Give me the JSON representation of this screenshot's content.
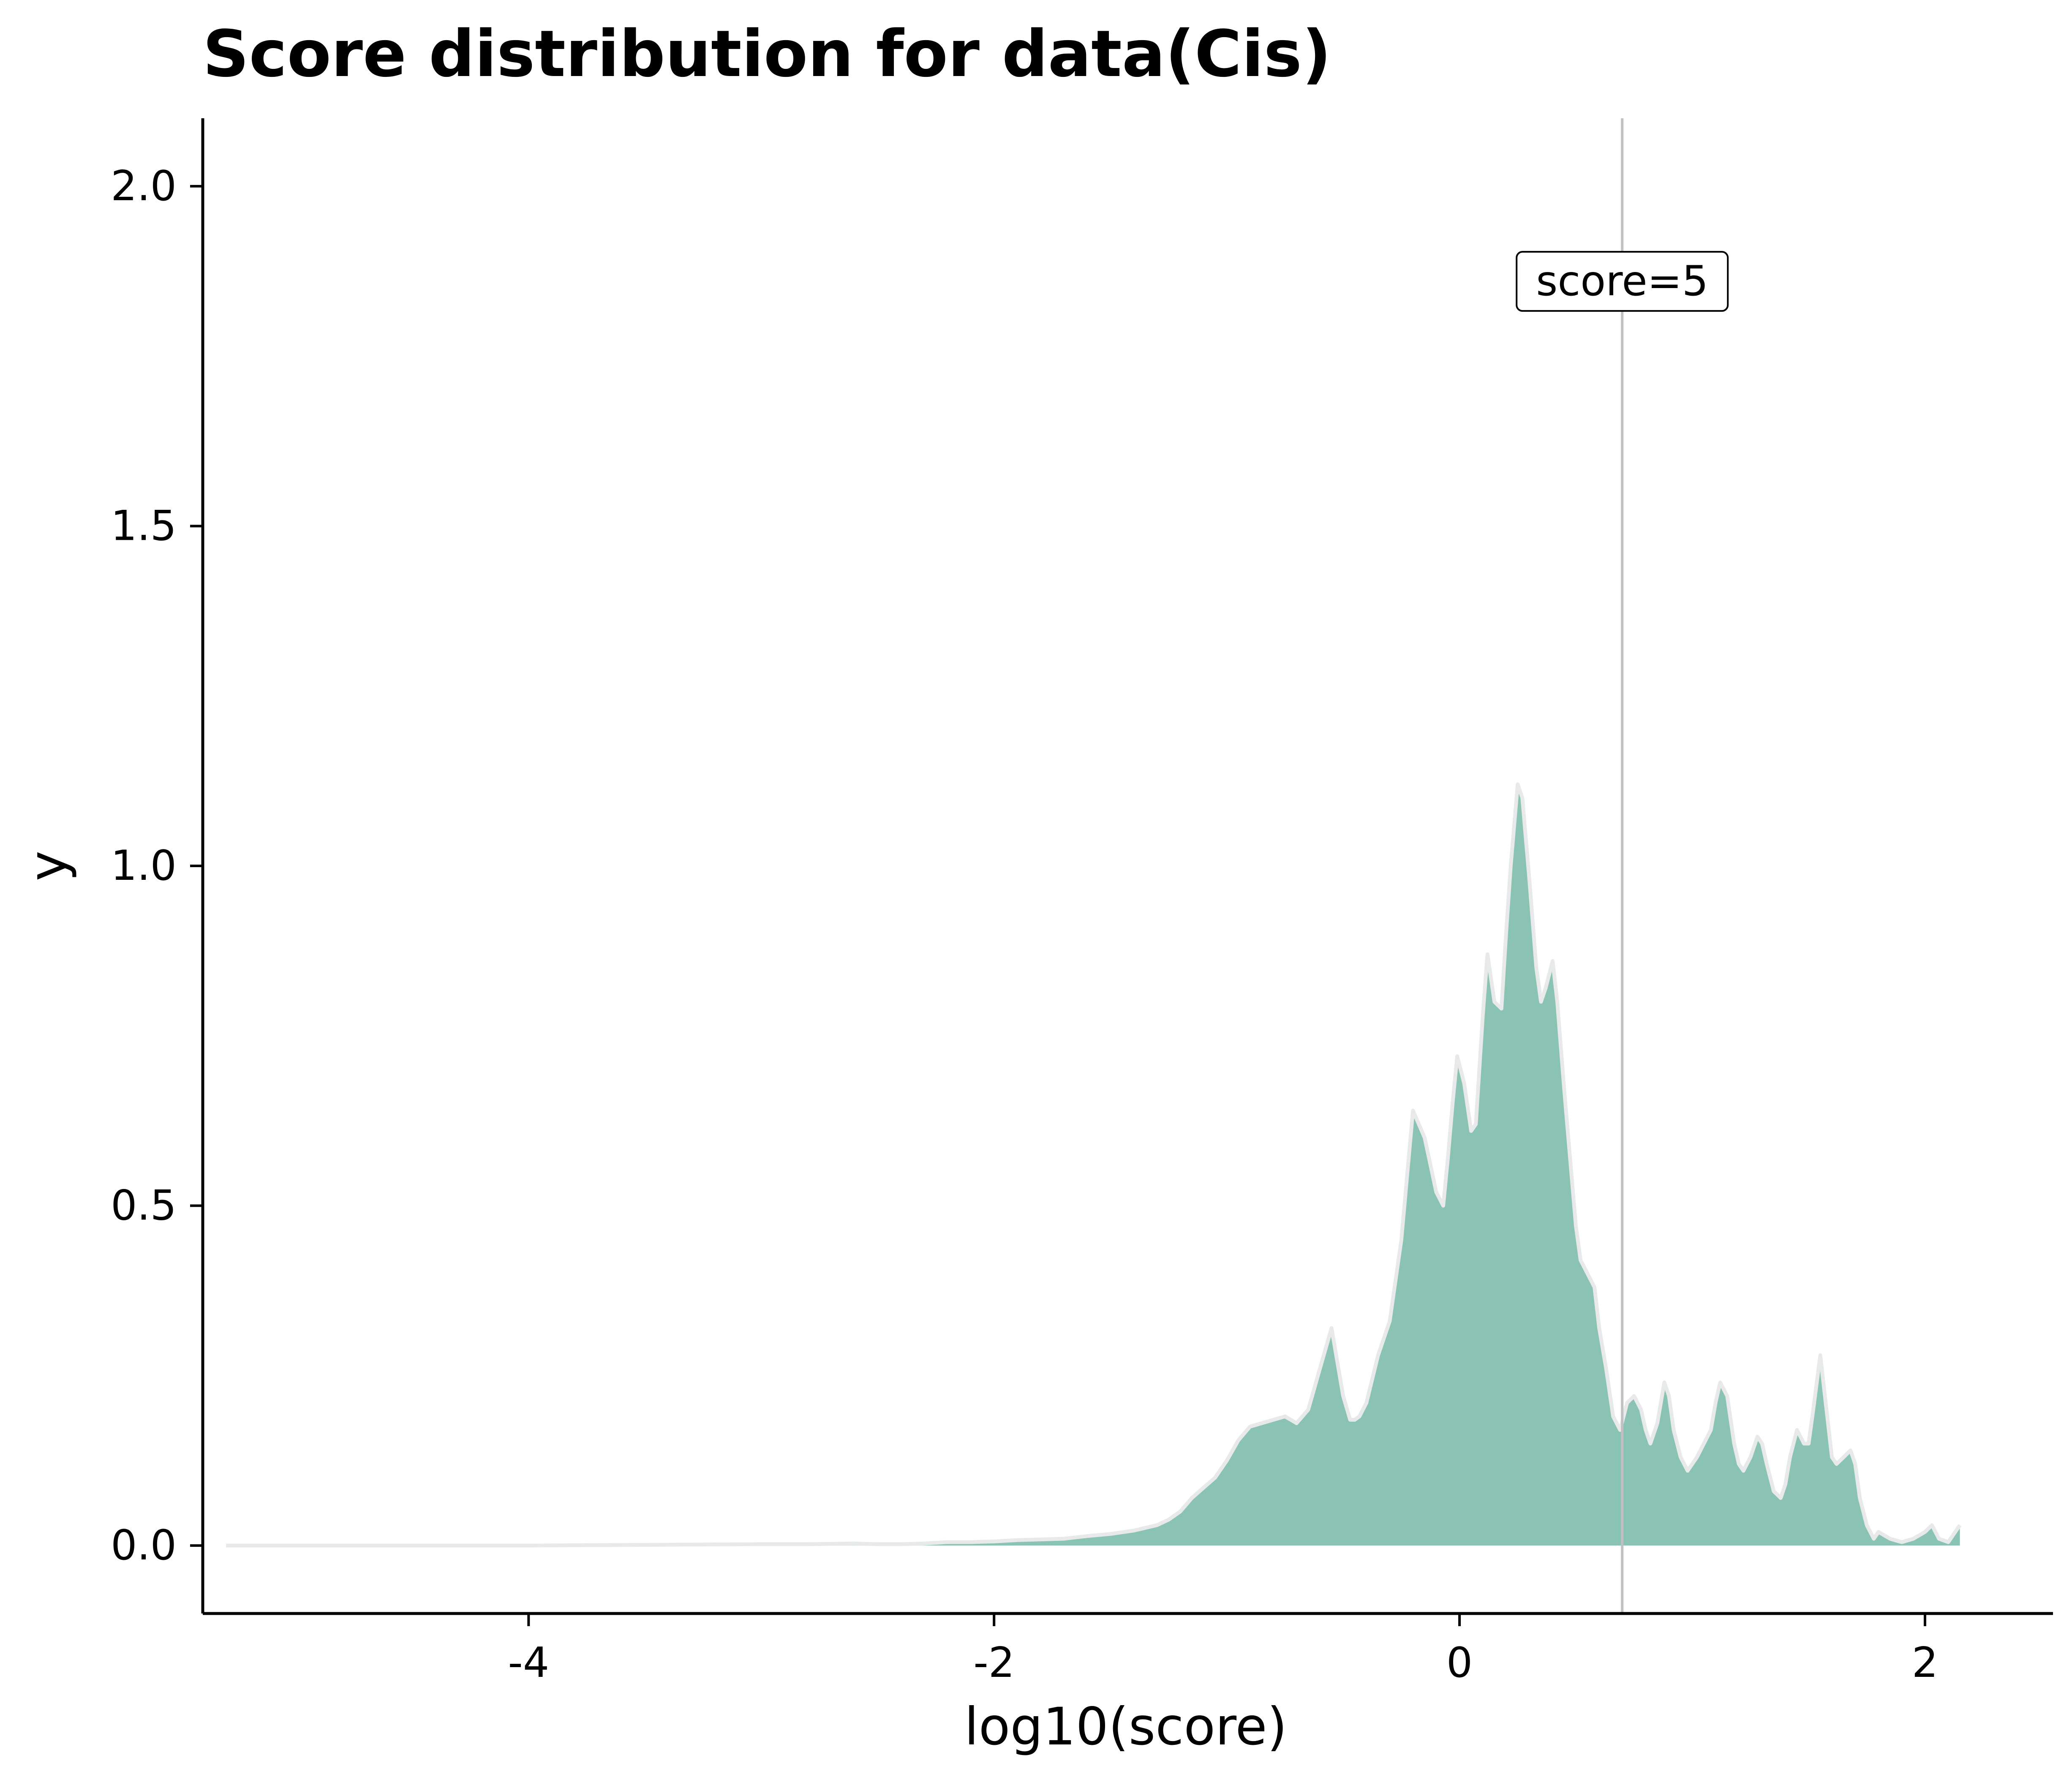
{
  "chart_data": {
    "type": "area",
    "title": "Score distribution for data(Cis)",
    "xlabel": "log10(score)",
    "ylabel": "y",
    "xlim": [
      -5.4,
      2.55
    ],
    "ylim": [
      -0.1,
      2.1
    ],
    "x_ticks": [
      {
        "value": -4,
        "label": "-4"
      },
      {
        "value": -2,
        "label": "-2"
      },
      {
        "value": 0,
        "label": "0"
      },
      {
        "value": 2,
        "label": "2"
      }
    ],
    "y_ticks": [
      {
        "value": 0.0,
        "label": "0.0"
      },
      {
        "value": 0.5,
        "label": "0.5"
      },
      {
        "value": 1.0,
        "label": "1.0"
      },
      {
        "value": 1.5,
        "label": "1.5"
      },
      {
        "value": 2.0,
        "label": "2.0"
      }
    ],
    "grid": false,
    "legend": "none",
    "fill_color": "#8ac2b3",
    "line_color": "#e8eaea",
    "reference_line": {
      "x": 0.699,
      "label": "score=5",
      "label_y": 1.86,
      "color": "#c0c0c0"
    },
    "series": [
      {
        "x": [
          -5.3,
          -5.0,
          -4.5,
          -4.0,
          -3.5,
          -3.0,
          -2.8,
          -2.6,
          -2.5,
          -2.4,
          -2.3,
          -2.2,
          -2.1,
          -2.0,
          -1.9,
          -1.8,
          -1.7,
          -1.6,
          -1.5,
          -1.4,
          -1.3,
          -1.25,
          -1.2,
          -1.15,
          -1.1,
          -1.05,
          -1.0,
          -0.95,
          -0.9,
          -0.85,
          -0.8,
          -0.75,
          -0.7,
          -0.65,
          -0.6,
          -0.55,
          -0.5,
          -0.47,
          -0.45,
          -0.43,
          -0.4,
          -0.35,
          -0.3,
          -0.25,
          -0.2,
          -0.15,
          -0.1,
          -0.07,
          -0.05,
          -0.03,
          -0.01,
          0.02,
          0.05,
          0.07,
          0.1,
          0.12,
          0.15,
          0.18,
          0.2,
          0.22,
          0.25,
          0.27,
          0.3,
          0.33,
          0.35,
          0.37,
          0.4,
          0.42,
          0.45,
          0.48,
          0.5,
          0.52,
          0.55,
          0.58,
          0.6,
          0.63,
          0.66,
          0.69,
          0.72,
          0.75,
          0.78,
          0.8,
          0.82,
          0.85,
          0.88,
          0.9,
          0.92,
          0.95,
          0.98,
          1.0,
          1.02,
          1.05,
          1.08,
          1.1,
          1.12,
          1.15,
          1.18,
          1.2,
          1.22,
          1.25,
          1.28,
          1.3,
          1.32,
          1.35,
          1.38,
          1.4,
          1.42,
          1.45,
          1.48,
          1.5,
          1.52,
          1.55,
          1.57,
          1.6,
          1.62,
          1.65,
          1.68,
          1.7,
          1.72,
          1.75,
          1.78,
          1.8,
          1.85,
          1.9,
          1.95,
          2.0,
          2.03,
          2.06,
          2.1,
          2.15
        ],
        "y": [
          0.0,
          0.0,
          0.0,
          0.0,
          0.001,
          0.002,
          0.002,
          0.003,
          0.002,
          0.002,
          0.003,
          0.005,
          0.005,
          0.006,
          0.008,
          0.009,
          0.01,
          0.014,
          0.017,
          0.022,
          0.03,
          0.038,
          0.05,
          0.07,
          0.085,
          0.1,
          0.125,
          0.155,
          0.175,
          0.18,
          0.185,
          0.19,
          0.18,
          0.2,
          0.26,
          0.32,
          0.22,
          0.185,
          0.185,
          0.19,
          0.21,
          0.28,
          0.33,
          0.45,
          0.64,
          0.6,
          0.52,
          0.5,
          0.57,
          0.65,
          0.72,
          0.68,
          0.61,
          0.62,
          0.78,
          0.87,
          0.8,
          0.79,
          0.9,
          1.0,
          1.12,
          1.1,
          0.98,
          0.85,
          0.8,
          0.82,
          0.86,
          0.8,
          0.67,
          0.55,
          0.47,
          0.42,
          0.4,
          0.38,
          0.32,
          0.26,
          0.19,
          0.17,
          0.21,
          0.22,
          0.2,
          0.17,
          0.15,
          0.18,
          0.24,
          0.22,
          0.17,
          0.13,
          0.11,
          0.12,
          0.13,
          0.15,
          0.17,
          0.21,
          0.24,
          0.22,
          0.15,
          0.12,
          0.11,
          0.13,
          0.16,
          0.15,
          0.12,
          0.08,
          0.07,
          0.09,
          0.13,
          0.17,
          0.15,
          0.15,
          0.2,
          0.28,
          0.22,
          0.13,
          0.12,
          0.13,
          0.14,
          0.12,
          0.07,
          0.03,
          0.01,
          0.02,
          0.01,
          0.005,
          0.01,
          0.02,
          0.03,
          0.01,
          0.005,
          0.03
        ]
      }
    ]
  }
}
